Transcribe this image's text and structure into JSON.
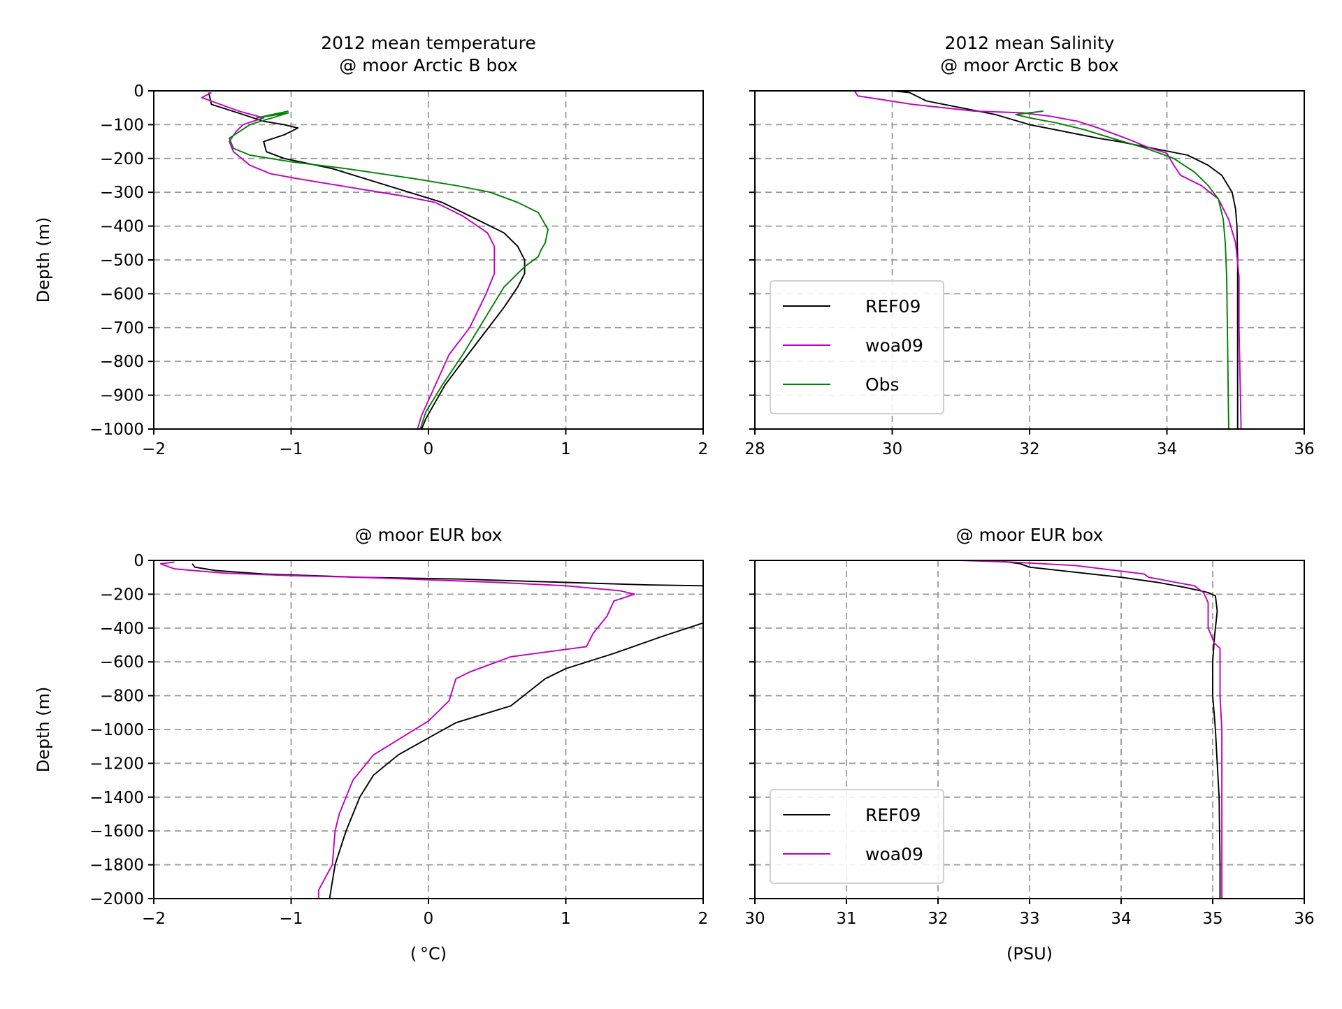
{
  "colors": {
    "REF09": "#000000",
    "woa09": "#c000c0",
    "Obs": "#008000"
  },
  "chart_data": [
    {
      "id": "temp-arctic",
      "type": "line",
      "title": "2012 mean temperature\n@ moor Arctic B box",
      "xlabel": "",
      "ylabel": "Depth (m)",
      "xlim": [
        -2,
        2
      ],
      "ylim": [
        -1000,
        0
      ],
      "xticks": [
        -2,
        -1,
        0,
        1,
        2
      ],
      "xtick_labels": [
        "−2",
        "−1",
        "0",
        "1",
        "2"
      ],
      "yticks": [
        0,
        -100,
        -200,
        -300,
        -400,
        -500,
        -600,
        -700,
        -800,
        -900,
        -1000
      ],
      "ytick_labels": [
        "0",
        "−100",
        "−200",
        "−300",
        "−400",
        "−500",
        "−600",
        "−700",
        "−800",
        "−900",
        "−1000"
      ],
      "show_yticklabels": true,
      "grid": true,
      "legend": null,
      "series": [
        {
          "name": "REF09",
          "x": [
            -1.6,
            -1.58,
            -1.35,
            -1.2,
            -1.05,
            -0.95,
            -1.05,
            -1.2,
            -1.18,
            -1.05,
            -0.7,
            -0.3,
            0.1,
            0.35,
            0.55,
            0.65,
            0.7,
            0.7,
            0.65,
            0.55,
            0.4,
            0.25,
            0.12,
            0.05,
            -0.02,
            -0.05
          ],
          "y": [
            -5,
            -40,
            -70,
            -90,
            -100,
            -110,
            -130,
            -150,
            -180,
            -200,
            -230,
            -280,
            -330,
            -380,
            -420,
            -460,
            -500,
            -540,
            -580,
            -640,
            -720,
            -800,
            -870,
            -920,
            -970,
            -1000
          ]
        },
        {
          "name": "woa09",
          "x": [
            -1.58,
            -1.65,
            -1.55,
            -1.38,
            -1.2,
            -1.35,
            -1.4,
            -1.45,
            -1.42,
            -1.3,
            -1.15,
            -0.95,
            -0.5,
            -0.2,
            0.05,
            0.25,
            0.43,
            0.48,
            0.48,
            0.42,
            0.3,
            0.15,
            -0.05,
            -0.08
          ],
          "y": [
            -5,
            -20,
            -35,
            -60,
            -80,
            -100,
            -120,
            -150,
            -180,
            -220,
            -245,
            -260,
            -290,
            -310,
            -330,
            -370,
            -420,
            -460,
            -540,
            -600,
            -700,
            -780,
            -960,
            -1000
          ]
        },
        {
          "name": "Obs",
          "x": [
            -1.02,
            -1.25,
            -1.02,
            -1.3,
            -1.45,
            -1.42,
            -1.3,
            -1.0,
            -0.6,
            -0.1,
            0.2,
            0.45,
            0.65,
            0.8,
            0.87,
            0.85,
            0.82,
            0.8,
            0.7,
            0.55,
            0.4,
            0.25,
            0.1,
            -0.02,
            -0.06
          ],
          "y": [
            -60,
            -80,
            -65,
            -100,
            -140,
            -170,
            -190,
            -210,
            -230,
            -260,
            -280,
            -300,
            -330,
            -360,
            -410,
            -450,
            -470,
            -490,
            -520,
            -580,
            -680,
            -780,
            -870,
            -950,
            -1000
          ]
        }
      ]
    },
    {
      "id": "sal-arctic",
      "type": "line",
      "title": "2012 mean Salinity\n@ moor Arctic B box",
      "xlabel": "",
      "ylabel": "",
      "xlim": [
        28,
        36
      ],
      "ylim": [
        -1000,
        0
      ],
      "xticks": [
        28,
        30,
        32,
        34,
        36
      ],
      "xtick_labels": [
        "28",
        "30",
        "32",
        "34",
        "36"
      ],
      "yticks": [
        0,
        -100,
        -200,
        -300,
        -400,
        -500,
        -600,
        -700,
        -800,
        -900,
        -1000
      ],
      "ytick_labels": [],
      "show_yticklabels": false,
      "grid": true,
      "legend": {
        "location": "lower-left",
        "entries": [
          "REF09",
          "woa09",
          "Obs"
        ]
      },
      "series": [
        {
          "name": "REF09",
          "x": [
            30.0,
            30.25,
            30.35,
            30.5,
            31.0,
            31.5,
            32.0,
            32.5,
            33.0,
            33.3,
            33.8,
            34.3,
            34.6,
            34.8,
            34.95,
            35.0,
            35.02,
            35.03,
            35.03,
            35.03
          ],
          "y": [
            0,
            -5,
            -15,
            -30,
            -50,
            -70,
            -100,
            -120,
            -140,
            -150,
            -170,
            -190,
            -220,
            -250,
            -300,
            -350,
            -400,
            -500,
            -700,
            -1000
          ]
        },
        {
          "name": "woa09",
          "x": [
            29.45,
            29.5,
            30.3,
            31.2,
            31.9,
            32.3,
            32.7,
            33.0,
            33.4,
            33.7,
            34.0,
            34.1,
            34.2,
            34.5,
            34.75,
            34.9,
            35.0,
            35.05,
            35.05,
            35.08
          ],
          "y": [
            0,
            -15,
            -40,
            -60,
            -65,
            -75,
            -90,
            -110,
            -140,
            -165,
            -185,
            -220,
            -250,
            -280,
            -320,
            -380,
            -450,
            -550,
            -700,
            -1000
          ]
        },
        {
          "name": "Obs",
          "x": [
            32.2,
            31.8,
            32.0,
            32.4,
            32.8,
            33.2,
            33.7,
            34.1,
            34.4,
            34.6,
            34.75,
            34.82,
            34.85,
            34.87,
            34.88,
            34.9
          ],
          "y": [
            -60,
            -70,
            -80,
            -95,
            -115,
            -140,
            -170,
            -200,
            -240,
            -280,
            -320,
            -380,
            -450,
            -550,
            -700,
            -1000
          ]
        }
      ]
    },
    {
      "id": "temp-eur",
      "type": "line",
      "title": "@ moor EUR box",
      "xlabel": "( °C)",
      "ylabel": "Depth (m)",
      "xlim": [
        -2,
        2
      ],
      "ylim": [
        -2000,
        0
      ],
      "xticks": [
        -2,
        -1,
        0,
        1,
        2
      ],
      "xtick_labels": [
        "−2",
        "−1",
        "0",
        "1",
        "2"
      ],
      "yticks": [
        0,
        -200,
        -400,
        -600,
        -800,
        -1000,
        -1200,
        -1400,
        -1600,
        -1800,
        -2000
      ],
      "ytick_labels": [
        "0",
        "−200",
        "−400",
        "−600",
        "−800",
        "−1000",
        "−1200",
        "−1400",
        "−1600",
        "−1800",
        "−2000"
      ],
      "show_yticklabels": true,
      "grid": true,
      "legend": null,
      "series": [
        {
          "name": "REF09",
          "x": [
            -1.72,
            -1.7,
            -1.55,
            -1.2,
            -0.5,
            0.2,
            1.0,
            1.6,
            2.0,
            2.2,
            2.2,
            2.0,
            1.7,
            1.35,
            1.0,
            0.85,
            0.6,
            0.2,
            0.0,
            -0.22,
            -0.4,
            -0.5,
            -0.6,
            -0.68,
            -0.72
          ],
          "y": [
            -20,
            -40,
            -60,
            -80,
            -100,
            -110,
            -130,
            -145,
            -150,
            -160,
            -330,
            -370,
            -450,
            -550,
            -640,
            -700,
            -860,
            -960,
            -1050,
            -1150,
            -1270,
            -1400,
            -1600,
            -1800,
            -2000
          ]
        },
        {
          "name": "woa09",
          "x": [
            -1.85,
            -1.95,
            -1.85,
            -1.5,
            -1.0,
            -0.5,
            0.0,
            0.5,
            1.0,
            1.4,
            1.5,
            1.35,
            1.3,
            1.2,
            1.15,
            0.6,
            0.3,
            0.2,
            0.15,
            0.0,
            -0.2,
            -0.4,
            -0.55,
            -0.65,
            -0.68,
            -0.7,
            -0.8,
            -0.8
          ],
          "y": [
            -10,
            -20,
            -50,
            -75,
            -90,
            -100,
            -115,
            -130,
            -150,
            -180,
            -200,
            -240,
            -330,
            -430,
            -510,
            -570,
            -660,
            -700,
            -830,
            -950,
            -1050,
            -1150,
            -1300,
            -1500,
            -1600,
            -1800,
            -1950,
            -2000
          ]
        }
      ]
    },
    {
      "id": "sal-eur",
      "type": "line",
      "title": "@ moor EUR box",
      "xlabel": "(PSU)",
      "ylabel": "",
      "xlim": [
        30,
        36
      ],
      "ylim": [
        -2000,
        0
      ],
      "xticks": [
        30,
        31,
        32,
        33,
        34,
        35,
        36
      ],
      "xtick_labels": [
        "30",
        "31",
        "32",
        "33",
        "34",
        "35",
        "36"
      ],
      "yticks": [
        0,
        -200,
        -400,
        -600,
        -800,
        -1000,
        -1200,
        -1400,
        -1600,
        -1800,
        -2000
      ],
      "ytick_labels": [],
      "show_yticklabels": false,
      "grid": true,
      "legend": {
        "location": "lower-left",
        "entries": [
          "REF09",
          "woa09"
        ]
      },
      "series": [
        {
          "name": "REF09",
          "x": [
            32.7,
            32.9,
            33.0,
            33.5,
            34.0,
            34.4,
            34.7,
            34.95,
            35.03,
            35.05,
            35.02,
            35.0,
            35.0,
            35.03,
            35.05,
            35.07,
            35.08,
            35.08
          ],
          "y": [
            -5,
            -20,
            -40,
            -70,
            -100,
            -130,
            -160,
            -190,
            -210,
            -300,
            -450,
            -600,
            -800,
            -1000,
            -1200,
            -1400,
            -1800,
            -2000
          ]
        },
        {
          "name": "woa09",
          "x": [
            32.25,
            32.8,
            33.5,
            34.25,
            34.3,
            34.4,
            34.6,
            34.8,
            34.9,
            34.95,
            34.95,
            35.02,
            35.08,
            35.08,
            35.1,
            35.1,
            35.1
          ],
          "y": [
            0,
            -10,
            -30,
            -80,
            -100,
            -110,
            -130,
            -150,
            -190,
            -250,
            -400,
            -490,
            -520,
            -800,
            -1000,
            -1400,
            -2000
          ]
        }
      ]
    }
  ]
}
